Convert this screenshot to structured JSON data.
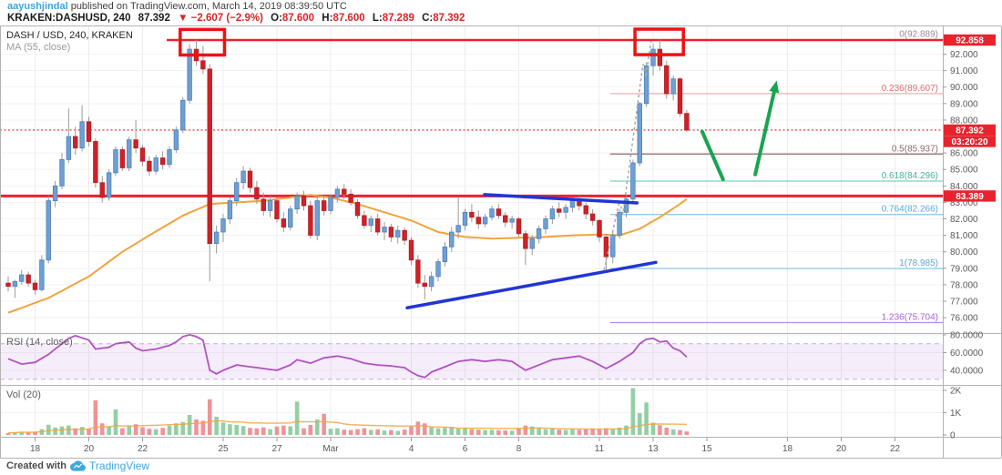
{
  "header": {
    "byline_user": "aayushjindal",
    "byline_rest": " published on TradingView.com, March 14, 2019 08:39:50 UTC",
    "symbol": "KRAKEN:DASHUSD, 240",
    "last_price": "87.392",
    "change": "▼ −2.607 (−2.9%)",
    "ohlc": [
      {
        "k": "O:",
        "v": "87.600"
      },
      {
        "k": "H:",
        "v": "87.600"
      },
      {
        "k": "L:",
        "v": "87.289"
      },
      {
        "k": "C:",
        "v": "87.392"
      }
    ]
  },
  "legend": {
    "main_title": "DASH / USD, 240, KRAKEN",
    "ma_label": "MA (55, close)",
    "rsi_label": "RSI (14, close)",
    "vol_label": "Vol (20)"
  },
  "footer": {
    "created_with": "Created with",
    "brand": "TradingView"
  },
  "colors": {
    "up": "#6f9fd3",
    "up_border": "#4d82b8",
    "down": "#ce2127",
    "down_border": "#b51d22",
    "wick": "#999999",
    "ma": "#f2a33c",
    "vol_up": "#94cfa4",
    "vol_down": "#f09396",
    "rsi": "#b052c0",
    "rsi_band_fill": "#c78ddd",
    "rsi_band_line": "#c6aed6",
    "trend_blue": "#2135d6",
    "box_red": "#ee1111",
    "green_annotation": "#18a551",
    "alert_red": "#f01f2f",
    "badge_red": "#e8232e",
    "grid_v": "#ececec",
    "grid_h": "#f2f2f2",
    "border": "#b3b3b3",
    "axis_text": "#58595b",
    "dashed_grey": "#a8a8a8",
    "link_blue": "#3ba6dd"
  },
  "chart_data": {
    "type": "candlestick",
    "title": "DASH / USD, 240, KRAKEN",
    "exchange": "KRAKEN",
    "symbol": "DASH/USD",
    "interval": "240",
    "candles": [
      [
        78.1,
        78.5,
        77.6,
        77.9,
        90
      ],
      [
        77.9,
        78.3,
        77.2,
        78.2,
        120
      ],
      [
        78.2,
        78.9,
        78.0,
        78.6,
        150
      ],
      [
        78.6,
        78.8,
        77.9,
        78.1,
        110
      ],
      [
        78.1,
        78.3,
        77.4,
        77.7,
        140
      ],
      [
        77.7,
        79.8,
        77.6,
        79.5,
        260
      ],
      [
        79.5,
        83.4,
        79.3,
        83.1,
        460
      ],
      [
        83.1,
        84.3,
        82.7,
        84.0,
        330
      ],
      [
        84.0,
        86.0,
        83.8,
        85.6,
        380
      ],
      [
        85.6,
        88.7,
        85.4,
        87.0,
        420
      ],
      [
        87.0,
        87.6,
        85.9,
        86.3,
        300
      ],
      [
        86.3,
        88.9,
        86.1,
        87.9,
        360
      ],
      [
        87.9,
        88.2,
        86.4,
        86.7,
        280
      ],
      [
        86.7,
        86.9,
        83.9,
        84.2,
        1550
      ],
      [
        84.2,
        84.6,
        83.0,
        83.3,
        520
      ],
      [
        83.3,
        85.0,
        83.1,
        84.8,
        380
      ],
      [
        84.8,
        86.4,
        84.6,
        86.2,
        1150
      ],
      [
        86.2,
        86.4,
        84.9,
        85.1,
        300
      ],
      [
        85.1,
        87.0,
        84.9,
        86.8,
        400
      ],
      [
        86.8,
        88.0,
        86.0,
        86.3,
        480
      ],
      [
        86.3,
        86.5,
        85.2,
        85.5,
        350
      ],
      [
        85.5,
        85.8,
        84.6,
        84.9,
        280
      ],
      [
        84.9,
        85.9,
        84.7,
        85.7,
        260
      ],
      [
        85.7,
        86.1,
        85.0,
        85.3,
        320
      ],
      [
        85.3,
        86.4,
        85.1,
        86.2,
        420
      ],
      [
        86.2,
        87.6,
        86.0,
        87.4,
        520
      ],
      [
        87.4,
        89.4,
        87.2,
        89.2,
        580
      ],
      [
        89.2,
        92.6,
        89.0,
        92.3,
        900
      ],
      [
        92.3,
        92.88,
        91.3,
        91.6,
        700
      ],
      [
        91.6,
        92.5,
        90.8,
        91.1,
        640
      ],
      [
        91.1,
        91.4,
        78.2,
        80.5,
        1600
      ],
      [
        80.5,
        81.6,
        79.9,
        81.2,
        820
      ],
      [
        81.2,
        82.3,
        80.6,
        82.0,
        560
      ],
      [
        82.0,
        83.3,
        81.7,
        83.1,
        480
      ],
      [
        83.1,
        84.5,
        82.8,
        84.2,
        450
      ],
      [
        84.2,
        85.2,
        83.8,
        84.9,
        400
      ],
      [
        84.9,
        85.1,
        83.6,
        83.9,
        320
      ],
      [
        83.9,
        84.3,
        82.9,
        83.2,
        300
      ],
      [
        83.2,
        83.6,
        82.2,
        82.5,
        340
      ],
      [
        82.5,
        83.4,
        82.1,
        83.1,
        260
      ],
      [
        83.1,
        83.3,
        81.8,
        82.0,
        380
      ],
      [
        82.0,
        82.4,
        81.2,
        81.5,
        420
      ],
      [
        81.5,
        82.8,
        81.3,
        82.6,
        390
      ],
      [
        82.6,
        83.6,
        82.3,
        83.4,
        1500
      ],
      [
        83.4,
        83.7,
        82.5,
        82.8,
        300
      ],
      [
        82.8,
        83.1,
        80.8,
        81.0,
        450
      ],
      [
        81.0,
        83.3,
        80.7,
        83.1,
        700
      ],
      [
        83.1,
        83.4,
        82.2,
        82.5,
        950
      ],
      [
        82.5,
        83.5,
        82.3,
        83.3,
        280
      ],
      [
        83.3,
        84.0,
        83.0,
        83.8,
        300
      ],
      [
        83.8,
        84.1,
        83.2,
        83.5,
        240
      ],
      [
        83.5,
        83.8,
        82.8,
        83.0,
        220
      ],
      [
        83.0,
        83.2,
        82.0,
        82.2,
        260
      ],
      [
        82.2,
        82.5,
        81.4,
        81.6,
        300
      ],
      [
        81.6,
        82.2,
        81.2,
        82.0,
        230
      ],
      [
        82.0,
        82.3,
        81.0,
        81.2,
        250
      ],
      [
        81.2,
        81.8,
        80.7,
        81.5,
        200
      ],
      [
        81.5,
        81.7,
        80.6,
        80.9,
        220
      ],
      [
        80.9,
        81.6,
        80.5,
        81.3,
        180
      ],
      [
        81.3,
        81.5,
        80.4,
        80.7,
        240
      ],
      [
        80.7,
        80.9,
        79.2,
        79.5,
        380
      ],
      [
        79.5,
        79.8,
        77.8,
        78.1,
        600
      ],
      [
        78.1,
        78.6,
        77.1,
        77.9,
        520
      ],
      [
        77.9,
        78.8,
        77.6,
        78.5,
        340
      ],
      [
        78.5,
        79.6,
        78.2,
        79.4,
        300
      ],
      [
        79.4,
        80.6,
        79.1,
        80.3,
        320
      ],
      [
        80.3,
        81.5,
        80.0,
        81.2,
        360
      ],
      [
        81.2,
        83.3,
        80.8,
        81.6,
        280
      ],
      [
        81.6,
        82.6,
        81.3,
        82.4,
        310
      ],
      [
        82.4,
        82.9,
        81.8,
        82.1,
        260
      ],
      [
        82.1,
        82.5,
        81.4,
        81.7,
        240
      ],
      [
        81.7,
        82.3,
        81.5,
        82.1,
        220
      ],
      [
        82.1,
        82.8,
        81.9,
        82.6,
        230
      ],
      [
        82.6,
        82.9,
        82.0,
        82.2,
        210
      ],
      [
        82.2,
        82.4,
        81.5,
        81.8,
        200
      ],
      [
        81.8,
        82.2,
        81.4,
        82.0,
        190
      ],
      [
        82.0,
        82.1,
        80.9,
        81.1,
        280
      ],
      [
        81.1,
        81.3,
        79.2,
        80.2,
        420
      ],
      [
        80.2,
        81.0,
        79.8,
        80.8,
        380
      ],
      [
        80.8,
        81.6,
        80.5,
        81.4,
        300
      ],
      [
        81.4,
        82.2,
        81.1,
        82.0,
        260
      ],
      [
        82.0,
        82.8,
        81.7,
        82.6,
        280
      ],
      [
        82.6,
        83.0,
        82.1,
        82.4,
        240
      ],
      [
        82.4,
        82.9,
        82.0,
        82.7,
        220
      ],
      [
        82.7,
        83.3,
        82.4,
        83.1,
        250
      ],
      [
        83.1,
        83.4,
        82.5,
        82.8,
        230
      ],
      [
        82.8,
        83.0,
        82.0,
        82.3,
        260
      ],
      [
        82.3,
        82.6,
        81.6,
        81.9,
        280
      ],
      [
        81.9,
        82.0,
        80.6,
        80.9,
        250
      ],
      [
        80.9,
        81.1,
        78.9,
        79.7,
        300
      ],
      [
        79.7,
        81.2,
        79.3,
        81.0,
        260
      ],
      [
        81.0,
        82.6,
        80.8,
        82.4,
        330
      ],
      [
        82.4,
        83.4,
        82.1,
        83.2,
        420
      ],
      [
        83.2,
        85.6,
        83.0,
        85.4,
        2100
      ],
      [
        85.4,
        89.1,
        85.2,
        89.0,
        980
      ],
      [
        89.0,
        91.5,
        88.8,
        91.3,
        1460
      ],
      [
        91.3,
        92.6,
        90.7,
        92.3,
        550
      ],
      [
        92.3,
        92.88,
        91.0,
        91.3,
        440
      ],
      [
        91.3,
        91.6,
        89.3,
        89.6,
        330
      ],
      [
        89.6,
        90.7,
        89.2,
        90.5,
        250
      ],
      [
        90.5,
        90.6,
        88.2,
        88.4,
        220
      ],
      [
        88.4,
        88.6,
        87.289,
        87.392,
        160
      ]
    ],
    "ma55_keypoints": [
      [
        0,
        76.3
      ],
      [
        6,
        77.2
      ],
      [
        12,
        78.5
      ],
      [
        17,
        80.0
      ],
      [
        21,
        81.0
      ],
      [
        26,
        82.2
      ],
      [
        30,
        82.9
      ],
      [
        34,
        83.0
      ],
      [
        38,
        83.1
      ],
      [
        42,
        83.3
      ],
      [
        45,
        83.45
      ],
      [
        48,
        83.3
      ],
      [
        52,
        82.9
      ],
      [
        56,
        82.4
      ],
      [
        60,
        81.9
      ],
      [
        64,
        81.2
      ],
      [
        68,
        80.9
      ],
      [
        72,
        80.8
      ],
      [
        76,
        80.85
      ],
      [
        80,
        80.9
      ],
      [
        84,
        81.0
      ],
      [
        88,
        81.05
      ],
      [
        91,
        81.0
      ],
      [
        94,
        81.4
      ],
      [
        97,
        82.1
      ],
      [
        100,
        82.9
      ],
      [
        101,
        83.2
      ]
    ],
    "rsi_keypoints": [
      [
        0,
        53
      ],
      [
        2,
        47
      ],
      [
        4,
        49
      ],
      [
        6,
        58
      ],
      [
        8,
        70
      ],
      [
        9,
        76
      ],
      [
        10,
        79
      ],
      [
        12,
        74
      ],
      [
        13,
        64
      ],
      [
        15,
        66
      ],
      [
        16,
        70
      ],
      [
        18,
        72
      ],
      [
        19,
        65
      ],
      [
        20,
        62
      ],
      [
        22,
        64
      ],
      [
        24,
        68
      ],
      [
        25,
        72
      ],
      [
        26,
        78
      ],
      [
        27,
        80
      ],
      [
        28,
        78
      ],
      [
        29,
        74
      ],
      [
        30,
        40
      ],
      [
        31,
        36
      ],
      [
        32,
        40
      ],
      [
        34,
        46
      ],
      [
        36,
        44
      ],
      [
        38,
        42
      ],
      [
        40,
        40
      ],
      [
        42,
        46
      ],
      [
        43,
        52
      ],
      [
        45,
        48
      ],
      [
        47,
        54
      ],
      [
        49,
        56
      ],
      [
        51,
        53
      ],
      [
        53,
        48
      ],
      [
        55,
        46
      ],
      [
        57,
        45
      ],
      [
        59,
        43
      ],
      [
        60,
        38
      ],
      [
        61,
        34
      ],
      [
        62,
        32
      ],
      [
        63,
        38
      ],
      [
        65,
        44
      ],
      [
        67,
        50
      ],
      [
        69,
        52
      ],
      [
        71,
        50
      ],
      [
        73,
        52
      ],
      [
        75,
        50
      ],
      [
        77,
        40
      ],
      [
        79,
        46
      ],
      [
        81,
        52
      ],
      [
        83,
        54
      ],
      [
        85,
        56
      ],
      [
        87,
        50
      ],
      [
        89,
        42
      ],
      [
        91,
        50
      ],
      [
        93,
        60
      ],
      [
        94,
        70
      ],
      [
        95,
        75
      ],
      [
        96,
        76
      ],
      [
        97,
        72
      ],
      [
        98,
        73
      ],
      [
        99,
        65
      ],
      [
        100,
        62
      ],
      [
        101,
        55
      ]
    ],
    "price_ticks": [
      {
        "label": "92.000",
        "p": 92
      },
      {
        "label": "91.000",
        "p": 91
      },
      {
        "label": "90.000",
        "p": 90
      },
      {
        "label": "89.000",
        "p": 89
      },
      {
        "label": "88.000",
        "p": 88
      },
      {
        "label": "86.000",
        "p": 86
      },
      {
        "label": "85.000",
        "p": 85
      },
      {
        "label": "84.000",
        "p": 84
      },
      {
        "label": "83.000",
        "p": 83
      },
      {
        "label": "82.000",
        "p": 82
      },
      {
        "label": "81.000",
        "p": 81
      },
      {
        "label": "80.000",
        "p": 80
      },
      {
        "label": "79.000",
        "p": 79
      },
      {
        "label": "78.000",
        "p": 78
      },
      {
        "label": "77.000",
        "p": 77
      },
      {
        "label": "76.000",
        "p": 76
      }
    ],
    "rsi_ticks": [
      {
        "label": "80.0000",
        "v": 80
      },
      {
        "label": "60.0000",
        "v": 60
      },
      {
        "label": "40.0000",
        "v": 40
      }
    ],
    "vol_ticks": [
      {
        "label": "2K",
        "v": 2000
      },
      {
        "label": "1K",
        "v": 1000
      },
      {
        "label": "0",
        "v": 0
      }
    ],
    "rsi_band": {
      "upper": 70,
      "lower": 30
    },
    "time_ticks": [
      {
        "label": "18",
        "d": 1
      },
      {
        "label": "20",
        "d": 3
      },
      {
        "label": "22",
        "d": 5
      },
      {
        "label": "25",
        "d": 8
      },
      {
        "label": "27",
        "d": 10
      },
      {
        "label": "Mar",
        "d": 12
      },
      {
        "label": "4",
        "d": 15
      },
      {
        "label": "6",
        "d": 17
      },
      {
        "label": "8",
        "d": 19
      },
      {
        "label": "11",
        "d": 22
      },
      {
        "label": "13",
        "d": 24
      },
      {
        "label": "15",
        "d": 26
      },
      {
        "label": "18",
        "d": 29
      },
      {
        "label": "20",
        "d": 31
      },
      {
        "label": "22",
        "d": 33
      }
    ],
    "badges": [
      {
        "label": "92.858",
        "p": 92.858
      },
      {
        "label": "87.392",
        "p": 87.392
      },
      {
        "label": "03:20:20",
        "countdown": true
      },
      {
        "label": "83.389",
        "p": 83.389
      }
    ],
    "fib_levels": [
      {
        "label": "0(92.889)",
        "p": 92.889,
        "text_color": "#909090",
        "line": false,
        "line_color": "#909090"
      },
      {
        "label": "0.236(89.607)",
        "p": 89.607,
        "text_color": "#dd6f6f",
        "line": true,
        "line_color": "#edb0b0"
      },
      {
        "label": "0.5(85.937)",
        "p": 85.937,
        "text_color": "#8f6b6b",
        "line": true,
        "line_color": "#8f6b6b"
      },
      {
        "label": "0.618(84.296)",
        "p": 84.296,
        "text_color": "#45b39a",
        "line": true,
        "line_color": "#7fd0bd"
      },
      {
        "label": "0.764(82.266)",
        "p": 82.266,
        "text_color": "#5aa7dc",
        "line": true,
        "line_color": "#8cc3e8"
      },
      {
        "label": "1(78.985)",
        "p": 78.985,
        "text_color": "#5aa7dc",
        "line": true,
        "line_color": "#8cc3e8"
      },
      {
        "label": "1.236(75.704)",
        "p": 75.704,
        "text_color": "#a864d8",
        "line": true,
        "line_color": "#b98ade"
      }
    ],
    "alert_lines": [
      {
        "p": 92.858,
        "from_i": 23.6,
        "width": 2.5
      },
      {
        "p": 83.389,
        "from_i": -1.3,
        "width": 3
      }
    ],
    "current_price_line": {
      "p": 87.392
    },
    "annotations": {
      "boxes": [
        {
          "i1": 25.6,
          "i2": 32.2,
          "p1": 93.5,
          "p2": 91.95
        },
        {
          "i1": 93.3,
          "i2": 100.5,
          "p1": 93.52,
          "p2": 91.97
        }
      ],
      "trendlines": [
        {
          "i1": 70.9,
          "p1": 83.47,
          "i2": 93.6,
          "p2": 82.97
        },
        {
          "i1": 59.4,
          "p1": 76.6,
          "i2": 96.4,
          "p2": 79.36
        }
      ],
      "zigzag": [
        [
          88.7,
          78.9
        ],
        [
          91.0,
          83.1
        ],
        [
          91.5,
          82.3
        ],
        [
          94.5,
          91.4
        ],
        [
          94.9,
          90.6
        ],
        [
          95.7,
          92.8
        ]
      ],
      "green_line": {
        "i1": 103.3,
        "p1": 87.3,
        "i2": 106.4,
        "p2": 84.4
      },
      "green_arrow": {
        "i1": 111.2,
        "p1": 84.7,
        "i2": 114.4,
        "p2": 90.4
      }
    }
  }
}
